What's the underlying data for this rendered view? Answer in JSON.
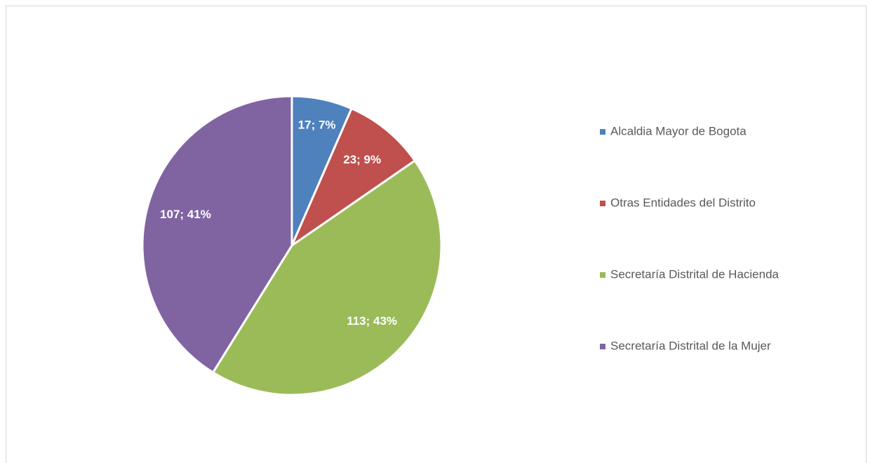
{
  "chart_data": {
    "type": "pie",
    "categories": [
      "Alcaldia Mayor de Bogota",
      "Otras Entidades del Distrito",
      "Secretaría Distrital de Hacienda",
      "Secretaría Distrital de la Mujer"
    ],
    "values": [
      17,
      23,
      113,
      107
    ],
    "value_labels": [
      "17; 7%",
      "23; 9%",
      "113; 43%",
      "107; 41%"
    ],
    "colors": [
      "#4f81bd",
      "#c0504d",
      "#9bbb59",
      "#8064a2"
    ],
    "legend": "right"
  }
}
